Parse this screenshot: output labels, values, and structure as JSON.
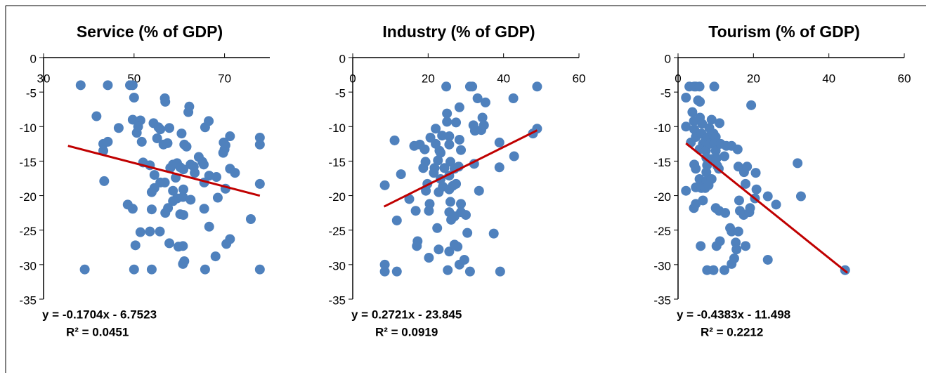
{
  "chart_data": [
    {
      "type": "scatter",
      "title": "Service (% of GDP)",
      "color": "#4f81bd",
      "xlim": [
        30,
        80
      ],
      "xticks": [
        30,
        50,
        70
      ],
      "ylim": [
        -35,
        0
      ],
      "yticks": [
        0,
        -5,
        -10,
        -15,
        -20,
        -25,
        -30,
        -35
      ],
      "x": [
        38.2,
        44.2,
        49.1,
        49.7,
        50,
        41.7,
        43.2,
        44.2,
        43.2,
        43.4,
        46.6,
        49.7,
        50.6,
        51.4,
        50.9,
        51.7,
        52,
        53.5,
        54.3,
        55.1,
        55.4,
        55.8,
        56.8,
        56.9,
        56.5,
        57.4,
        57.8,
        54.5,
        54.5,
        53.9,
        55.8,
        56.8,
        58,
        58.6,
        59.2,
        59.5,
        60.2,
        60.9,
        60.5,
        61.1,
        61.6,
        62,
        62.2,
        62.5,
        63.4,
        63.2,
        64.3,
        65.1,
        65.4,
        65.7,
        66.5,
        66.6,
        65.5,
        60.9,
        58.6,
        59.5,
        60.8,
        62.5,
        58.6,
        57.5,
        56.9,
        53.9,
        49.7,
        48.6,
        60.2,
        60.9,
        65.5,
        68.2,
        69.7,
        70,
        69.8,
        70.2,
        71.2,
        71.2,
        72.3,
        70.2,
        68.5,
        77.8,
        77.8,
        77.8,
        75.8,
        66.6,
        55.7,
        53.5,
        51.4,
        50.3,
        57.8,
        59.8,
        60.8,
        71.2,
        70.4,
        68,
        61.1,
        60.8,
        39.1,
        50,
        53.9,
        65.7,
        77.8
      ],
      "values": [
        -4,
        -4,
        -4,
        -4,
        -5.8,
        -8.5,
        -12.5,
        -12.2,
        -13.5,
        -17.9,
        -10.2,
        -9,
        -10.9,
        -9.1,
        -10,
        -12.2,
        -15.2,
        -15.6,
        -9.5,
        -11.7,
        -10.1,
        -10.4,
        -5.9,
        -6.4,
        -12.6,
        -12.4,
        -10.2,
        -17,
        -18.9,
        -19.5,
        -18.1,
        -18.1,
        -16,
        -15.5,
        -17.4,
        -15.3,
        -15.9,
        -16.2,
        -11,
        -12.6,
        -12.9,
        -7.9,
        -7.1,
        -15.5,
        -16.7,
        -15.8,
        -14.4,
        -15.1,
        -15.5,
        -10.1,
        -9.2,
        -17.1,
        -18.1,
        -19.1,
        -19.3,
        -20.4,
        -20.2,
        -20.6,
        -20.8,
        -21.8,
        -22.5,
        -22,
        -21.9,
        -21.3,
        -22.7,
        -22.8,
        -21.9,
        -17.3,
        -13.8,
        -13.3,
        -12.3,
        -12.7,
        -11.4,
        -16.1,
        -16.7,
        -19,
        -20.3,
        -11.6,
        -12.6,
        -18.3,
        -23.4,
        -24.5,
        -25.2,
        -25.2,
        -25.3,
        -27.2,
        -26.9,
        -27.4,
        -27.3,
        -26.3,
        -27,
        -28.8,
        -29.5,
        -29.9,
        -30.7,
        -30.7,
        -30.7,
        -30.7,
        -30.7
      ],
      "trendline": {
        "color": "#c00000",
        "slope": -0.1704,
        "intercept": -6.7523,
        "x": [
          35.4,
          77.8
        ]
      },
      "equation": "y = -0.1704x - 6.7523",
      "r2_label": "R² = 0.0451"
    },
    {
      "type": "scatter",
      "title": "Industry (% of GDP)",
      "color": "#4f81bd",
      "xlim": [
        0,
        60
      ],
      "xticks": [
        0,
        20,
        40,
        60
      ],
      "ylim": [
        -35,
        0
      ],
      "yticks": [
        0,
        -5,
        -10,
        -15,
        -20,
        -25,
        -30,
        -35
      ],
      "x": [
        8.5,
        8.5,
        8.5,
        11.7,
        11.7,
        11.1,
        12.8,
        15,
        16.3,
        17.8,
        19.1,
        16.7,
        17.2,
        17,
        18.7,
        19.3,
        19.4,
        19.8,
        20.2,
        20.4,
        20.2,
        20.6,
        21.7,
        21.5,
        22,
        22,
        23,
        22.6,
        23.3,
        23.7,
        22.8,
        22.4,
        22.8,
        23.3,
        23.9,
        24.3,
        24.8,
        25,
        25,
        25.6,
        25.6,
        25.9,
        25.6,
        26.5,
        25.6,
        25.9,
        25.6,
        27,
        26.1,
        25.2,
        25.6,
        27,
        27.8,
        27,
        27.4,
        27.4,
        28.3,
        28.3,
        28.1,
        28.7,
        28.7,
        28.7,
        28.3,
        29.6,
        30,
        31.1,
        31.7,
        32,
        32.4,
        32.2,
        33.1,
        33.5,
        34.1,
        34.4,
        34.8,
        35.2,
        30.4,
        31.1,
        37.4,
        38.9,
        38.9,
        39.1,
        42.6,
        42.8,
        47.8,
        48.9,
        48.9
      ],
      "values": [
        -30,
        -18.5,
        -31,
        -31,
        -23.6,
        -12,
        -16.9,
        -20.5,
        -12.8,
        -12.6,
        -13.3,
        -22.2,
        -26.6,
        -27.3,
        -16,
        -15.1,
        -19.3,
        -18.3,
        -22.2,
        -21.2,
        -29,
        -11.6,
        -16,
        -16.7,
        -10.3,
        -12.5,
        -13.5,
        -14.9,
        -13.8,
        -11.3,
        -19.5,
        -24.7,
        -27.8,
        -17.6,
        -18.7,
        -16,
        -4.2,
        -8.1,
        -9.3,
        -11.4,
        -12.6,
        -15.1,
        -17.1,
        -18.6,
        -19.1,
        -20.9,
        -22.4,
        -23,
        -23.5,
        -30.8,
        -28.1,
        -27.1,
        -27.4,
        -16.1,
        -18.3,
        -9.4,
        -11.9,
        -7.2,
        -15.8,
        -13.4,
        -21.2,
        -22.4,
        -30,
        -29.3,
        -22.8,
        -4.2,
        -4.2,
        -9.8,
        -10.6,
        -15.4,
        -5.9,
        -19.3,
        -10.5,
        -8.7,
        -9.8,
        -6.5,
        -25.4,
        -31,
        -25.5,
        -12.3,
        -15.9,
        -31,
        -5.9,
        -14.3,
        -11,
        -10.3,
        -4.2
      ],
      "trendline": {
        "color": "#c00000",
        "slope": 0.2721,
        "intercept": -23.845,
        "x": [
          8.3,
          48.9
        ]
      },
      "equation": "y = 0.2721x - 23.845",
      "r2_label": "R² = 0.0919"
    },
    {
      "type": "scatter",
      "title": "Tourism (% of GDP)",
      "color": "#4f81bd",
      "xlim": [
        0,
        60
      ],
      "xticks": [
        0,
        20,
        40,
        60
      ],
      "ylim": [
        -35,
        0
      ],
      "yticks": [
        0,
        -5,
        -10,
        -15,
        -20,
        -25,
        -30,
        -35
      ],
      "x": [
        2.1,
        3,
        4.3,
        4.7,
        5.7,
        9.6,
        2.1,
        2.1,
        3.4,
        3.8,
        4.2,
        4.3,
        4.7,
        4.3,
        4.7,
        4.2,
        4.7,
        4.7,
        5.3,
        5.8,
        5.8,
        6.4,
        6.2,
        6.6,
        5.7,
        5.7,
        6.2,
        6.6,
        6,
        7.2,
        7.4,
        7.5,
        7.7,
        7.5,
        7.5,
        7.2,
        7.9,
        8.3,
        8.5,
        8.9,
        8.9,
        8.9,
        8.1,
        9.4,
        10,
        9.6,
        10,
        10.2,
        10.4,
        11,
        11.3,
        10.8,
        10,
        10.2,
        7.7,
        9.4,
        10.9,
        11.1,
        12.8,
        12.3,
        12.5,
        12.3,
        13.8,
        14.2,
        14.2,
        14.9,
        15.3,
        14.2,
        15.5,
        15.8,
        16,
        16.2,
        16,
        17.5,
        16.4,
        17.4,
        17.9,
        17.9,
        18.9,
        19.1,
        18.3,
        19.4,
        20.4,
        20.8,
        20.6,
        23.8,
        23.8,
        26,
        31.7,
        32.6,
        44.3
      ],
      "values": [
        -5.8,
        -4.2,
        -4.2,
        -4.2,
        -4.2,
        -4.2,
        -10,
        -19.3,
        -12.3,
        -7.9,
        -9.2,
        -10.4,
        -11.5,
        -15.5,
        -16.1,
        -21.8,
        -21.2,
        -18.8,
        -6.2,
        -6.4,
        -8.7,
        -9.6,
        -11,
        -12.5,
        -13.3,
        -17.6,
        -18.9,
        -20.7,
        -27.3,
        -12.1,
        -13.5,
        -14.5,
        -15.6,
        -16.6,
        -17.9,
        -18.9,
        -11.5,
        -10.2,
        -12.5,
        -9,
        -14.7,
        -17.6,
        -18.5,
        -11,
        -11.5,
        -12.5,
        -13.5,
        -14.6,
        -15.7,
        -9.5,
        -12.5,
        -16.1,
        -21.8,
        -27.3,
        -30.8,
        -30.8,
        -22.2,
        -26.6,
        -12.8,
        -14.3,
        -22.5,
        -30.8,
        -24.7,
        -25.2,
        -29.9,
        -29.1,
        -26.8,
        -12.8,
        -27.8,
        -13.3,
        -25.2,
        -20.7,
        -15.8,
        -16.6,
        -22.2,
        -22.8,
        -27.3,
        -18.3,
        -22.4,
        -21.8,
        -15.8,
        -6.9,
        -20.4,
        -19.1,
        -16.7,
        -20.1,
        -29.3,
        -21.3,
        -15.3,
        -20.1,
        -30.8
      ],
      "trendline": {
        "color": "#c00000",
        "slope": -0.4383,
        "intercept": -11.498,
        "x": [
          2.1,
          44.9
        ]
      },
      "equation": "y = -0.4383x - 11.498",
      "r2_label": "R² = 0.2212"
    }
  ]
}
